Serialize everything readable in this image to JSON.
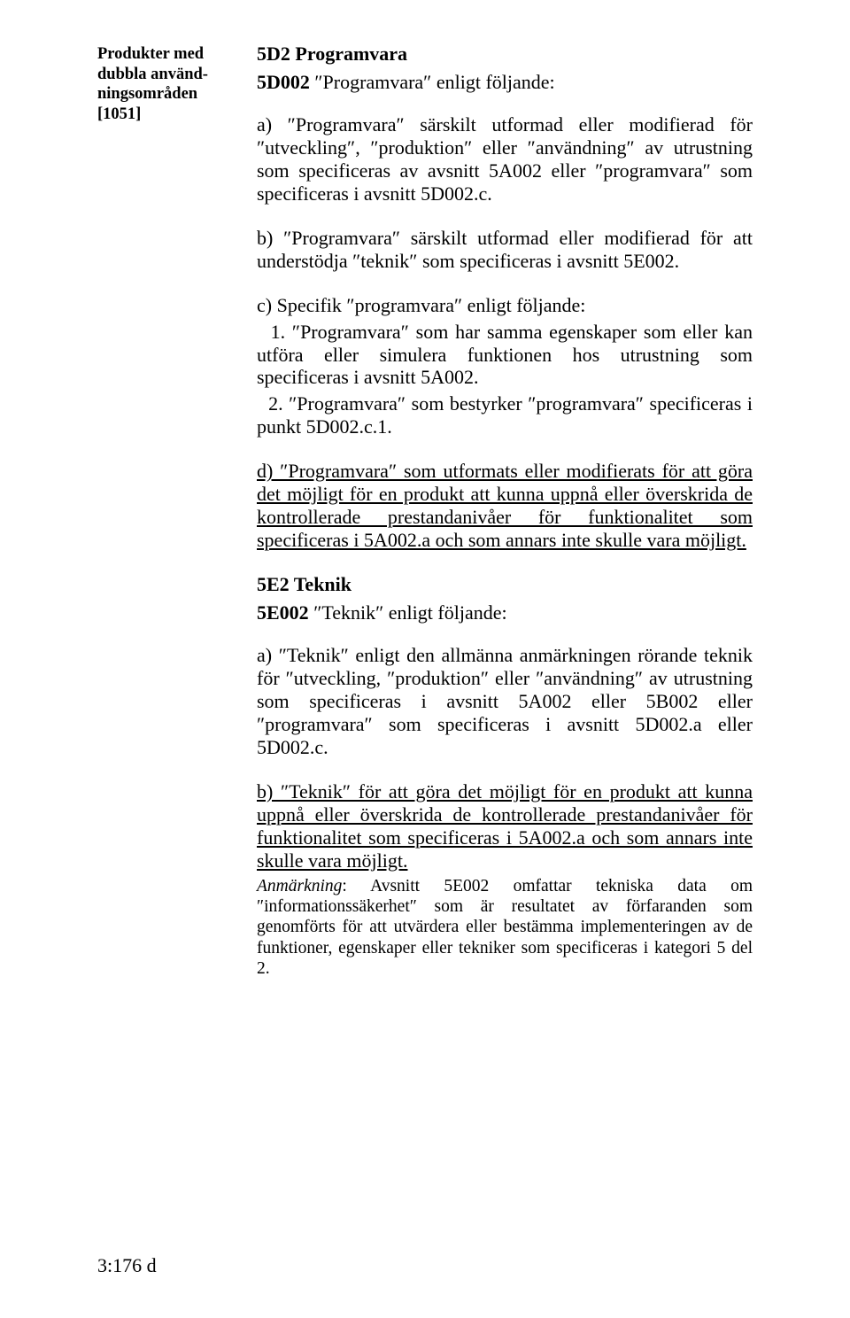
{
  "sidenote": {
    "line1": "Produkter med",
    "line2": "dubbla använd-",
    "line3": "ningsområden",
    "line4": "[1051]"
  },
  "section5D2": {
    "heading": "5D2 Programvara",
    "intro_prefix_bold": "5D002",
    "intro_rest": " ″Programvara″ enligt följande:",
    "a": "a) ″Programvara″ särskilt utformad eller modifierad för ″utveckling″, ″produktion″ eller ″användning″ av utrustning som specificeras av avsnitt 5A002 eller ″programvara″ som specificeras i avsnitt 5D002.c.",
    "b": "b) ″Programvara″ särskilt utformad eller modifierad för att understödja ″teknik″ som specificeras i avsnitt 5E002.",
    "c_intro": "c) Specifik ″programvara″ enligt följande:",
    "c1": "  1. ″Programvara″ som har samma egenskaper som eller kan utföra eller simulera funktionen hos utrustning som specificeras i avsnitt 5A002.",
    "c2": "  2. ″Programvara″ som bestyrker ″programvara″ specificeras i punkt 5D002.c.1.",
    "d": "d) ″Programvara″ som utformats eller modifierats för att göra det möjligt för en produkt att kunna uppnå eller överskrida de kontrollerade prestandanivåer för funktionalitet som specificeras i 5A002.a och som annars inte skulle vara möjligt."
  },
  "section5E2": {
    "heading": "5E2 Teknik",
    "intro_prefix_bold": "5E002",
    "intro_rest": " ″Teknik″ enligt följande:",
    "a": "a) ″Teknik″ enligt den allmänna anmärkningen rörande teknik för ″utveckling, ″produktion″ eller ″användning″ av utrustning som specificeras i avsnitt 5A002 eller 5B002 eller ″programvara″ som specificeras i avsnitt 5D002.a eller 5D002.c.",
    "b": "b) ″Teknik″ för att göra det möjligt för en produkt att kunna uppnå eller överskrida de kontrollerade prestandanivåer för funktionalitet som specificeras i 5A002.a och som annars inte skulle vara möjligt.",
    "note_label": "Anmärkning",
    "note_text": ": Avsnitt 5E002 omfattar tekniska data om ″informationssäkerhet″ som är resultatet av förfaranden som genomförts för att utvärdera eller bestämma implementeringen av de funktioner, egenskaper eller tekniker som specificeras i kategori 5 del 2."
  },
  "page_number": "3:176 d"
}
